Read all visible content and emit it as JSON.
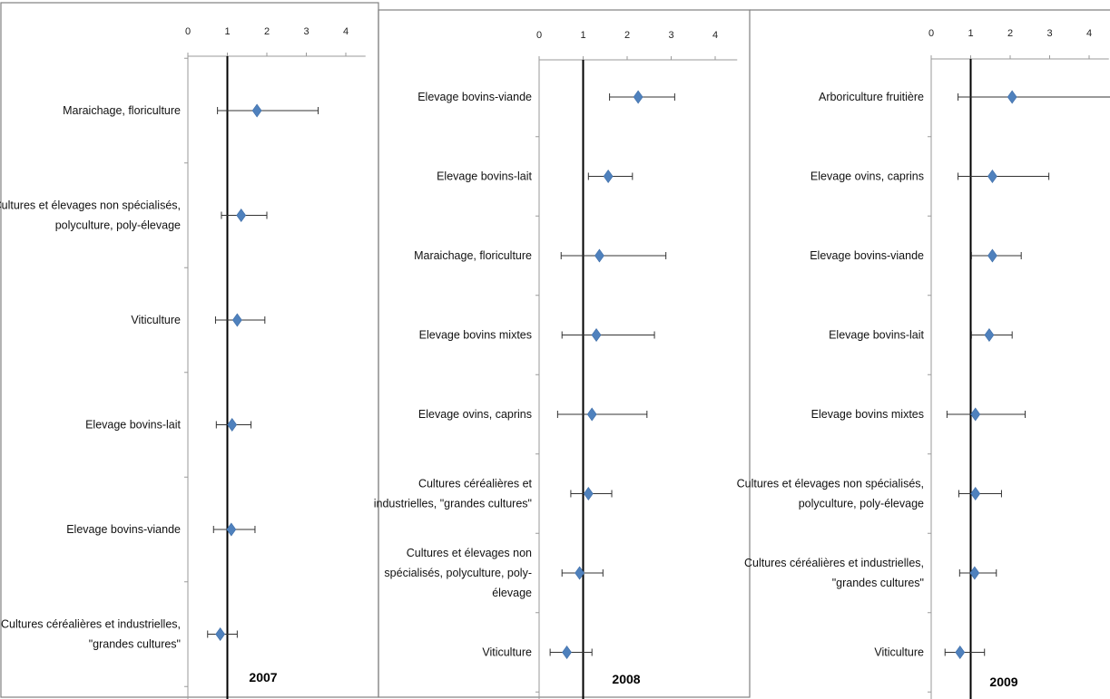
{
  "chart_data": [
    {
      "type": "scatter",
      "title": "2007",
      "xaxis_ticks": [
        0,
        1,
        2,
        3,
        4
      ],
      "xlim": [
        0,
        4.5
      ],
      "reference_line_x": 1,
      "grid": false,
      "marker_color": "#4F81BD",
      "categories": [
        [
          "Maraichage, floriculture"
        ],
        [
          "Cultures et élevages non spécialisés,",
          "polyculture, poly-élevage"
        ],
        [
          "Viticulture"
        ],
        [
          "Elevage bovins-lait"
        ],
        [
          "Elevage bovins-viande"
        ],
        [
          "Cultures céréalières et industrielles,",
          "\"grandes cultures\""
        ]
      ],
      "values": [
        1.75,
        1.35,
        1.25,
        1.12,
        1.1,
        0.82
      ],
      "lower": [
        0.75,
        0.85,
        0.7,
        0.72,
        0.65,
        0.5
      ],
      "upper": [
        3.3,
        2.0,
        1.95,
        1.6,
        1.7,
        1.25
      ]
    },
    {
      "type": "scatter",
      "title": "2008",
      "xaxis_ticks": [
        0,
        1,
        2,
        3,
        4
      ],
      "xlim": [
        0,
        4.5
      ],
      "reference_line_x": 1,
      "grid": false,
      "marker_color": "#4F81BD",
      "categories": [
        [
          "Elevage bovins-viande"
        ],
        [
          "Elevage bovins-lait"
        ],
        [
          "Maraichage, floriculture"
        ],
        [
          "Elevage bovins mixtes"
        ],
        [
          "Elevage ovins, caprins"
        ],
        [
          "Cultures céréalières et",
          "industrielles, \"grandes cultures\""
        ],
        [
          "Cultures et élevages non",
          "spécialisés, polyculture, poly-",
          "élevage"
        ],
        [
          "Viticulture"
        ]
      ],
      "values": [
        2.25,
        1.57,
        1.37,
        1.3,
        1.2,
        1.12,
        0.92,
        0.63
      ],
      "lower": [
        1.6,
        1.12,
        0.5,
        0.52,
        0.42,
        0.72,
        0.52,
        0.25
      ],
      "upper": [
        3.08,
        2.12,
        2.88,
        2.62,
        2.45,
        1.65,
        1.45,
        1.2
      ]
    },
    {
      "type": "scatter",
      "title": "2009",
      "xaxis_ticks": [
        0,
        1,
        2,
        3,
        4
      ],
      "xlim": [
        0,
        4.5
      ],
      "reference_line_x": 1,
      "grid": false,
      "marker_color": "#4F81BD",
      "categories": [
        [
          "Arboriculture fruitière"
        ],
        [
          "Elevage ovins, caprins"
        ],
        [
          "Elevage bovins-viande"
        ],
        [
          "Elevage bovins-lait"
        ],
        [
          "Elevage bovins mixtes"
        ],
        [
          "Cultures et élevages non spécialisés,",
          "polyculture, poly-élevage"
        ],
        [
          "Cultures céréalières et industrielles,",
          "\"grandes cultures\""
        ],
        [
          "Viticulture"
        ]
      ],
      "values": [
        2.05,
        1.55,
        1.55,
        1.47,
        1.12,
        1.12,
        1.1,
        0.73
      ],
      "lower": [
        0.68,
        0.68,
        1.02,
        1.02,
        0.4,
        0.7,
        0.72,
        0.35
      ],
      "upper": [
        4.6,
        2.98,
        2.28,
        2.05,
        2.38,
        1.78,
        1.65,
        1.35
      ]
    }
  ]
}
